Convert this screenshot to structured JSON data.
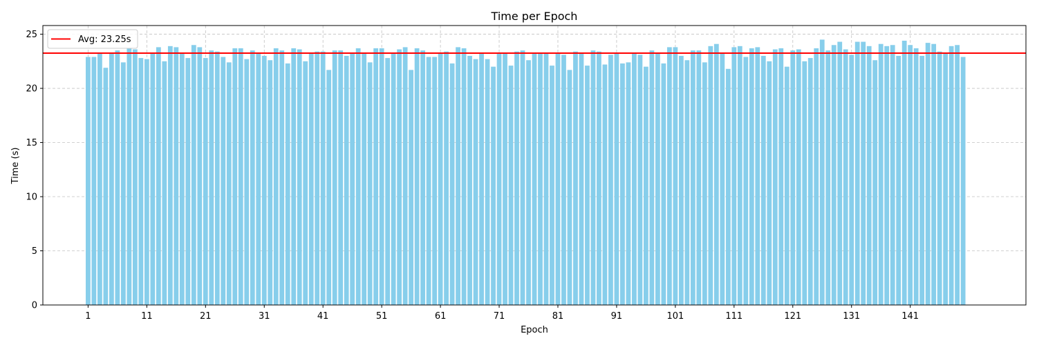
{
  "chart_data": {
    "type": "bar",
    "title": "Time per Epoch",
    "xlabel": "Epoch",
    "ylabel": "Time (s)",
    "ylim": [
      0,
      25.8
    ],
    "xlim": [
      -6.7,
      160.7
    ],
    "yticks": [
      0,
      5,
      10,
      15,
      20,
      25
    ],
    "xticks": [
      1,
      11,
      21,
      31,
      41,
      51,
      61,
      71,
      81,
      91,
      101,
      111,
      121,
      131,
      141
    ],
    "grid": true,
    "legend_position": "top-left",
    "bar_color": "#87CEEB",
    "average": {
      "value": 23.25,
      "label": "Avg: 23.25s",
      "color": "#FF0000"
    },
    "series": [
      {
        "x_start": 1,
        "values": [
          22.9,
          22.9,
          23.2,
          21.9,
          23.3,
          23.5,
          22.4,
          23.7,
          23.6,
          22.8,
          22.7,
          23.3,
          23.8,
          22.5,
          23.9,
          23.8,
          23.2,
          22.8,
          24.0,
          23.8,
          22.8,
          23.5,
          23.4,
          22.9,
          22.4,
          23.7,
          23.7,
          22.7,
          23.5,
          23.2,
          23.0,
          22.6,
          23.7,
          23.5,
          22.3,
          23.7,
          23.6,
          22.5,
          23.2,
          23.4,
          23.4,
          21.7,
          23.5,
          23.5,
          23.0,
          23.2,
          23.7,
          23.2,
          22.4,
          23.7,
          23.7,
          22.8,
          23.2,
          23.6,
          23.8,
          21.7,
          23.7,
          23.5,
          22.9,
          22.9,
          23.2,
          23.4,
          22.3,
          23.8,
          23.7,
          23.0,
          22.7,
          23.2,
          22.7,
          22.0,
          23.2,
          23.2,
          22.1,
          23.4,
          23.5,
          22.6,
          23.2,
          23.2,
          23.3,
          22.1,
          23.2,
          23.1,
          21.7,
          23.4,
          23.3,
          22.1,
          23.5,
          23.4,
          22.2,
          23.1,
          23.2,
          22.3,
          22.4,
          23.3,
          23.1,
          22.0,
          23.5,
          23.2,
          22.3,
          23.8,
          23.8,
          23.0,
          22.6,
          23.5,
          23.5,
          22.4,
          23.9,
          24.1,
          23.3,
          21.8,
          23.8,
          23.9,
          22.9,
          23.7,
          23.8,
          23.0,
          22.5,
          23.6,
          23.7,
          22.0,
          23.5,
          23.6,
          22.5,
          22.8,
          23.7,
          24.5,
          23.5,
          24.0,
          24.3,
          23.6,
          23.1,
          24.3,
          24.3,
          23.9,
          22.6,
          24.1,
          23.9,
          24.0,
          23.0,
          24.4,
          24.0,
          23.7,
          23.0,
          24.2,
          24.1,
          23.4,
          23.2,
          23.9,
          24.0,
          22.9
        ]
      }
    ]
  }
}
